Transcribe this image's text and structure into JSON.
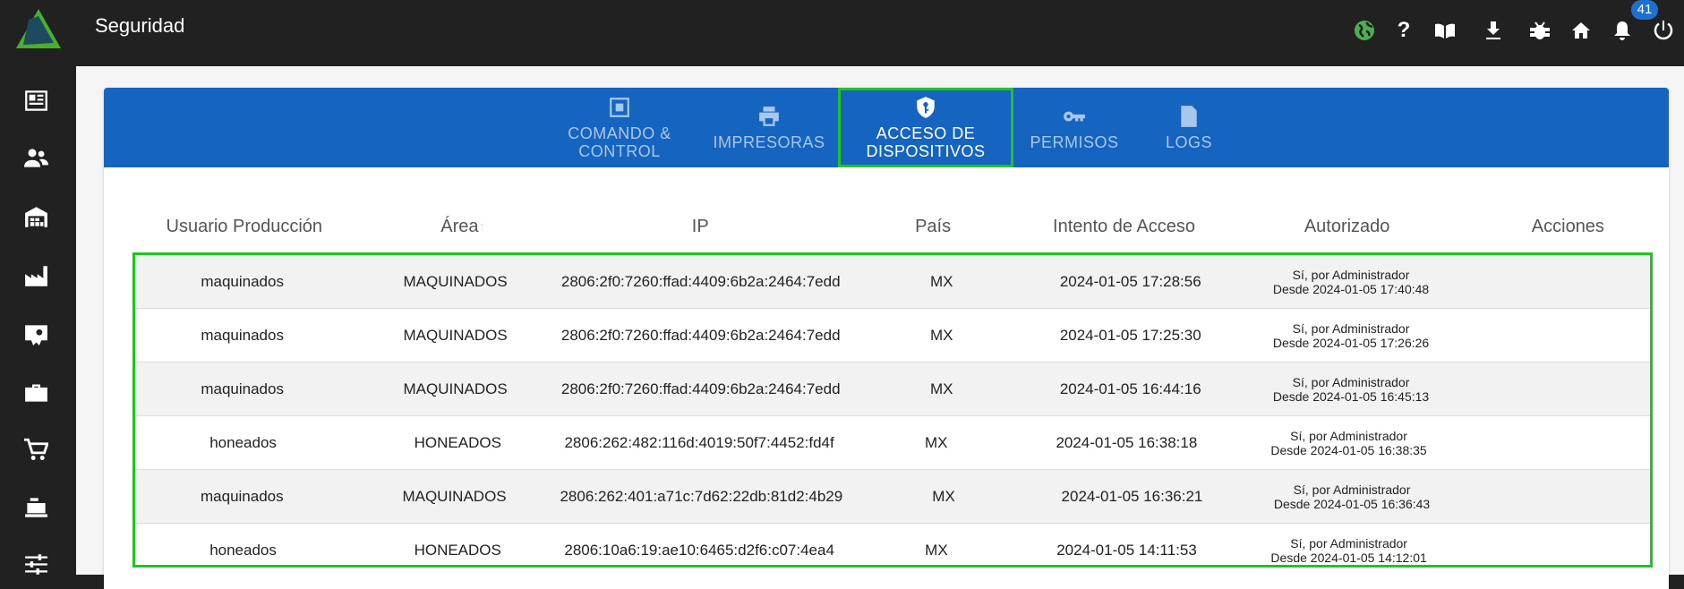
{
  "app": {
    "title": "Seguridad",
    "notification_count": "41",
    "accent": "#1565c0",
    "highlight": "#22c322"
  },
  "topbar_icons": [
    "globe-icon",
    "help-icon",
    "book-icon",
    "download-icon",
    "bug-icon",
    "home-icon",
    "bell-icon",
    "power-icon"
  ],
  "sidebar_icons": [
    "newspaper-icon",
    "users-icon",
    "warehouse-icon",
    "factory-icon",
    "certificate-icon",
    "toolbox-icon",
    "cart-icon",
    "cash-register-icon",
    "sliders-icon"
  ],
  "tabs": [
    {
      "label": "COMANDO &\nCONTROL",
      "icon": "control-panel-icon"
    },
    {
      "label": "IMPRESORAS",
      "icon": "printer-icon"
    },
    {
      "label": "ACCESO DE\nDISPOSITIVOS",
      "icon": "shield-key-icon",
      "active": true
    },
    {
      "label": "PERMISOS",
      "icon": "key-icon"
    },
    {
      "label": "LOGS",
      "icon": "file-icon"
    }
  ],
  "table": {
    "columns": [
      "Usuario Producción",
      "Área",
      "IP",
      "País",
      "Intento de Acceso",
      "Autorizado",
      "Acciones"
    ],
    "sort": {
      "column": "Área",
      "direction": "asc"
    },
    "rows": [
      {
        "user": "maquinados",
        "area": "MAQUINADOS",
        "ip": "2806:2f0:7260:ffad:4409:6b2a:2464:7edd",
        "country": "MX",
        "attempt": "2024-01-05 17:28:56",
        "auth1": "Sí, por Administrador",
        "auth2": "Desde 2024-01-05 17:40:48"
      },
      {
        "user": "maquinados",
        "area": "MAQUINADOS",
        "ip": "2806:2f0:7260:ffad:4409:6b2a:2464:7edd",
        "country": "MX",
        "attempt": "2024-01-05 17:25:30",
        "auth1": "Sí, por Administrador",
        "auth2": "Desde 2024-01-05 17:26:26"
      },
      {
        "user": "maquinados",
        "area": "MAQUINADOS",
        "ip": "2806:2f0:7260:ffad:4409:6b2a:2464:7edd",
        "country": "MX",
        "attempt": "2024-01-05 16:44:16",
        "auth1": "Sí, por Administrador",
        "auth2": "Desde 2024-01-05 16:45:13"
      },
      {
        "user": "honeados",
        "area": "HONEADOS",
        "ip": "2806:262:482:116d:4019:50f7:4452:fd4f",
        "country": "MX",
        "attempt": "2024-01-05 16:38:18",
        "auth1": "Sí, por Administrador",
        "auth2": "Desde 2024-01-05 16:38:35"
      },
      {
        "user": "maquinados",
        "area": "MAQUINADOS",
        "ip": "2806:262:401:a71c:7d62:22db:81d2:4b29",
        "country": "MX",
        "attempt": "2024-01-05 16:36:21",
        "auth1": "Sí, por Administrador",
        "auth2": "Desde 2024-01-05 16:36:43"
      },
      {
        "user": "honeados",
        "area": "HONEADOS",
        "ip": "2806:10a6:19:ae10:6465:d2f6:c07:4ea4",
        "country": "MX",
        "attempt": "2024-01-05 14:11:53",
        "auth1": "Sí, por Administrador",
        "auth2": "Desde 2024-01-05 14:12:01"
      }
    ]
  }
}
